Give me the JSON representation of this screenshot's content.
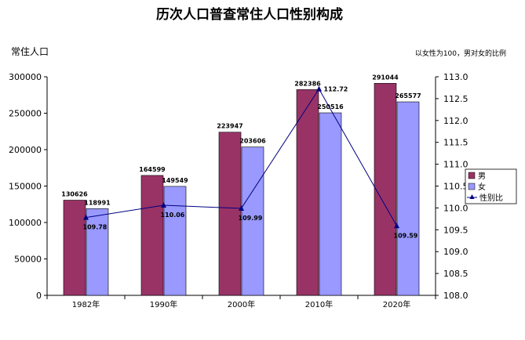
{
  "chart_data": {
    "type": "bar",
    "title": "历次人口普查常住人口性别构成",
    "ylabel": "常住人口",
    "y2label": "以女性为100，男对女的比例",
    "categories": [
      "1982年",
      "1990年",
      "2000年",
      "2010年",
      "2020年"
    ],
    "series": [
      {
        "name": "男",
        "values": [
          130626,
          164599,
          223947,
          282386,
          291044
        ],
        "color": "#993366"
      },
      {
        "name": "女",
        "values": [
          118991,
          149549,
          203606,
          250516,
          265577
        ],
        "color": "#9999ff"
      },
      {
        "name": "性别比",
        "type": "line",
        "axis": "right",
        "values": [
          109.78,
          110.06,
          109.99,
          112.72,
          109.59
        ],
        "color": "#000080"
      }
    ],
    "ylim": [
      0,
      300000
    ],
    "yticks": [
      0,
      50000,
      100000,
      150000,
      200000,
      250000,
      300000
    ],
    "y2lim": [
      108.0,
      113.0
    ],
    "y2ticks": [
      "108.0",
      "108.5",
      "109.0",
      "109.5",
      "110.0",
      "110.5",
      "111.0",
      "111.5",
      "112.0",
      "112.5",
      "113.0"
    ],
    "legend": {
      "placement": "right",
      "entries": [
        "男",
        "女",
        "性别比"
      ]
    }
  }
}
